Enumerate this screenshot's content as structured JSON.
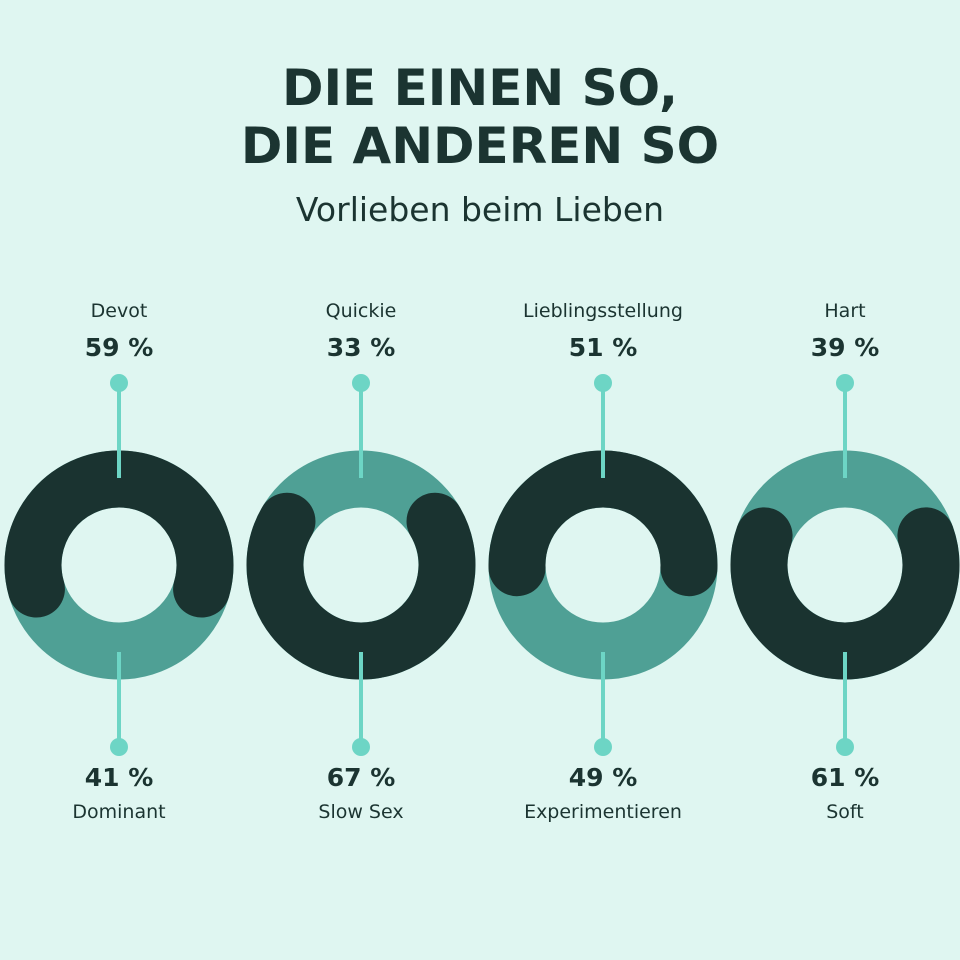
{
  "title_line1": "DIE EINEN SO,",
  "title_line2": "DIE ANDEREN SO",
  "subtitle": "Vorlieben beim Lieben",
  "colors": {
    "background": "#dff6f1",
    "dark": "#1a3330",
    "teal": "#4fa095",
    "accent": "#6dd5c5"
  },
  "chart_data": {
    "type": "pie",
    "variant": "donut",
    "charts": [
      {
        "top": {
          "label": "Devot",
          "value": 59,
          "text": "59 %",
          "color": "dark"
        },
        "bottom": {
          "label": "Dominant",
          "value": 41,
          "text": "41 %",
          "color": "teal"
        }
      },
      {
        "top": {
          "label": "Quickie",
          "value": 33,
          "text": "33 %",
          "color": "teal"
        },
        "bottom": {
          "label": "Slow Sex",
          "value": 67,
          "text": "67 %",
          "color": "dark"
        }
      },
      {
        "top": {
          "label": "Lieblingsstellung",
          "value": 51,
          "text": "51 %",
          "color": "dark"
        },
        "bottom": {
          "label": "Experimentieren",
          "value": 49,
          "text": "49 %",
          "color": "teal"
        }
      },
      {
        "top": {
          "label": "Hart",
          "value": 39,
          "text": "39 %",
          "color": "teal"
        },
        "bottom": {
          "label": "Soft",
          "value": 61,
          "text": "61 %",
          "color": "dark"
        }
      }
    ]
  }
}
